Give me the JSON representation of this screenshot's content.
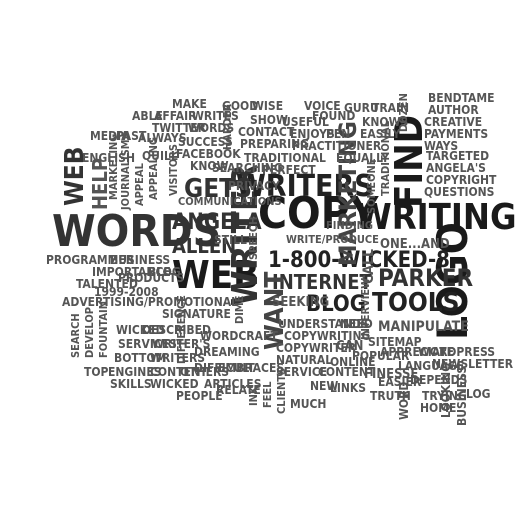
{
  "words": [
    {
      "text": "WORDS",
      "color": "#333333"
    },
    {
      "text": "COPY",
      "color": "#1a1a1a"
    },
    {
      "text": "WRITING",
      "color": "#1a1a1a"
    },
    {
      "text": "WEB",
      "color": "#1a1a1a"
    },
    {
      "text": "WRITER",
      "color": "#333333"
    },
    {
      "text": "LOGO",
      "color": "#1a1a1a"
    },
    {
      "text": "FIND",
      "color": "#1a1a1a"
    },
    {
      "text": "1-800-WICKED-8",
      "color": "#222222"
    },
    {
      "text": "WRITERS",
      "color": "#222222"
    },
    {
      "text": "ANGELA",
      "color": "#333333"
    },
    {
      "text": "ALLEN",
      "color": "#333333"
    },
    {
      "text": "INTERNET",
      "color": "#333333"
    },
    {
      "text": "PARKER",
      "color": "#333333"
    },
    {
      "text": "TOOLS",
      "color": "#222222"
    },
    {
      "text": "BLOG",
      "color": "#222222"
    },
    {
      "text": "MARKETING",
      "color": "#444444"
    },
    {
      "text": "GETS",
      "color": "#333333"
    },
    {
      "text": "WEB",
      "color": "#333333"
    },
    {
      "text": "HELP",
      "color": "#555555"
    },
    {
      "text": "WANT",
      "color": "#444444"
    },
    {
      "text": "CALL",
      "color": "#555555"
    },
    {
      "text": "PRIVACY",
      "color": "#555555"
    },
    {
      "text": "STILL",
      "color": "#555555"
    },
    {
      "text": "ONE...AND",
      "color": "#555555"
    },
    {
      "text": "BLOG",
      "color": "#555555"
    },
    {
      "text": "SEEKING",
      "color": "#555555"
    },
    {
      "text": "UNDERSTANDS",
      "color": "#555555"
    },
    {
      "text": "NEED",
      "color": "#555555"
    },
    {
      "text": "MANIPULATE",
      "color": "#555555"
    },
    {
      "text": "COPYWRITING",
      "color": "#555555"
    },
    {
      "text": "COPYWRITER",
      "color": "#555555"
    },
    {
      "text": "CAN",
      "color": "#555555"
    },
    {
      "text": "WORDCRAFT",
      "color": "#555555"
    },
    {
      "text": "DREAMING",
      "color": "#555555"
    },
    {
      "text": "DIFFICULT",
      "color": "#555555"
    },
    {
      "text": "ARTICLES",
      "color": "#555555"
    },
    {
      "text": "EMBRACES",
      "color": "#555555"
    },
    {
      "text": "SERVICE",
      "color": "#555555"
    },
    {
      "text": "NATURAL",
      "color": "#555555"
    },
    {
      "text": "CONTENT",
      "color": "#555555"
    },
    {
      "text": "FINESSE",
      "color": "#555555"
    },
    {
      "text": "NEW",
      "color": "#555555"
    },
    {
      "text": "LINKS",
      "color": "#555555"
    },
    {
      "text": "ONLINE",
      "color": "#555555"
    },
    {
      "text": "POPULAR",
      "color": "#555555"
    },
    {
      "text": "SITEMAP",
      "color": "#555555"
    },
    {
      "text": "APPRECIATE",
      "color": "#555555"
    },
    {
      "text": "WORDPRESS",
      "color": "#555555"
    },
    {
      "text": "LANGUAGE",
      "color": "#555555"
    },
    {
      "text": "NEWSLETTER",
      "color": "#555555"
    },
    {
      "text": "EASIER",
      "color": "#555555"
    },
    {
      "text": "DEPENDS",
      "color": "#555555"
    },
    {
      "text": "TRUTH",
      "color": "#555555"
    },
    {
      "text": "WORD",
      "color": "#555555"
    },
    {
      "text": "TRYING",
      "color": "#555555"
    },
    {
      "text": "HOME",
      "color": "#555555"
    },
    {
      "text": "LOOKING",
      "color": "#555555"
    },
    {
      "text": "BUSINESS",
      "color": "#555555"
    },
    {
      "text": "LOG",
      "color": "#555555"
    },
    {
      "text": "PROGRAMMER",
      "color": "#555555"
    },
    {
      "text": "BUSINESS",
      "color": "#555555"
    },
    {
      "text": "IMPORTANCE",
      "color": "#555555"
    },
    {
      "text": "BLOG",
      "color": "#555555"
    },
    {
      "text": "TALENTED",
      "color": "#555555"
    },
    {
      "text": "1999-2008",
      "color": "#555555"
    },
    {
      "text": "ADVERTISING/PROMOTIONAL",
      "color": "#555555"
    },
    {
      "text": "PRODUCTS",
      "color": "#555555"
    },
    {
      "text": "SIGNATURE",
      "color": "#555555"
    },
    {
      "text": "WICKED",
      "color": "#555555"
    },
    {
      "text": "DESCRIBED",
      "color": "#555555"
    },
    {
      "text": "SERVICES",
      "color": "#555555"
    },
    {
      "text": "WRITER'S",
      "color": "#555555"
    },
    {
      "text": "BOTTOM",
      "color": "#555555"
    },
    {
      "text": "WRITERS",
      "color": "#555555"
    },
    {
      "text": "TOP",
      "color": "#555555"
    },
    {
      "text": "ENGINES",
      "color": "#555555"
    },
    {
      "text": "SKILLS",
      "color": "#555555"
    },
    {
      "text": "WICKED",
      "color": "#555555"
    },
    {
      "text": "CONTENT",
      "color": "#555555"
    },
    {
      "text": "PEOPLE",
      "color": "#555555"
    },
    {
      "text": "RELATE",
      "color": "#555555"
    },
    {
      "text": "OTHERS",
      "color": "#555555"
    },
    {
      "text": "DIFFERENCE",
      "color": "#555555"
    },
    {
      "text": "SEARCH",
      "color": "#555555"
    },
    {
      "text": "DEVELOP",
      "color": "#555555"
    },
    {
      "text": "FOUNTAIN",
      "color": "#555555"
    },
    {
      "text": "DIME",
      "color": "#555555"
    },
    {
      "text": "SPEECH",
      "color": "#555555"
    },
    {
      "text": "INK",
      "color": "#555555"
    },
    {
      "text": "MUCH",
      "color": "#555555"
    },
    {
      "text": "FEEL",
      "color": "#555555"
    },
    {
      "text": "CLIENTS",
      "color": "#555555"
    },
    {
      "text": "INTERVIEW",
      "color": "#555555"
    },
    {
      "text": "WRITE/PRODUCE",
      "color": "#555555"
    },
    {
      "text": "FINDING",
      "color": "#555555"
    },
    {
      "text": "COMMUNICATIONS",
      "color": "#555555"
    },
    {
      "text": "MAKE",
      "color": "#555555"
    },
    {
      "text": "AFFAIR",
      "color": "#555555"
    },
    {
      "text": "WRITES",
      "color": "#555555"
    },
    {
      "text": "GOOD",
      "color": "#555555"
    },
    {
      "text": "WISE",
      "color": "#555555"
    },
    {
      "text": "VOICE",
      "color": "#555555"
    },
    {
      "text": "GURU",
      "color": "#555555"
    },
    {
      "text": "TRAIN",
      "color": "#555555"
    },
    {
      "text": "BENDTAME",
      "color": "#555555"
    },
    {
      "text": "AUTHOR",
      "color": "#555555"
    },
    {
      "text": "ABLE",
      "color": "#555555"
    },
    {
      "text": "TWITTER",
      "color": "#555555"
    },
    {
      "text": "WORDS",
      "color": "#555555"
    },
    {
      "text": "HARDER",
      "color": "#555555"
    },
    {
      "text": "SHOW",
      "color": "#555555"
    },
    {
      "text": "USEFUL",
      "color": "#555555"
    },
    {
      "text": "FOUND",
      "color": "#555555"
    },
    {
      "text": "KNOWS",
      "color": "#555555"
    },
    {
      "text": "CREATIVE",
      "color": "#555555"
    },
    {
      "text": "DOZEN",
      "color": "#555555"
    },
    {
      "text": "MEDIA",
      "color": "#555555"
    },
    {
      "text": "PAST",
      "color": "#555555"
    },
    {
      "text": "ALWAYS",
      "color": "#555555"
    },
    {
      "text": "SUCCESS",
      "color": "#555555"
    },
    {
      "text": "CONTACT",
      "color": "#555555"
    },
    {
      "text": "ENJOYS",
      "color": "#555555"
    },
    {
      "text": "PEN",
      "color": "#555555"
    },
    {
      "text": "EASILY",
      "color": "#555555"
    },
    {
      "text": "PAYMENTS",
      "color": "#555555"
    },
    {
      "text": "WAYS",
      "color": "#555555"
    },
    {
      "text": "ENGLISH",
      "color": "#555555"
    },
    {
      "text": "QUILL",
      "color": "#555555"
    },
    {
      "text": "FACEBOOK",
      "color": "#555555"
    },
    {
      "text": "PREPARING",
      "color": "#555555"
    },
    {
      "text": "PRACTITIONER",
      "color": "#555555"
    },
    {
      "text": "TRADITIONAL",
      "color": "#555555"
    },
    {
      "text": "TARGETED",
      "color": "#555555"
    },
    {
      "text": "ANGELA'S",
      "color": "#555555"
    },
    {
      "text": "COPYRIGHT",
      "color": "#555555"
    },
    {
      "text": "QUESTIONS",
      "color": "#555555"
    },
    {
      "text": "MARKETING",
      "color": "#555555"
    },
    {
      "text": "JOURNALISM",
      "color": "#555555"
    },
    {
      "text": "APPEAL",
      "color": "#555555"
    },
    {
      "text": "APPEALING",
      "color": "#555555"
    },
    {
      "text": "VISITORS",
      "color": "#555555"
    },
    {
      "text": "KNOW",
      "color": "#555555"
    },
    {
      "text": "SEARCHING",
      "color": "#555555"
    },
    {
      "text": "PERFECT",
      "color": "#555555"
    },
    {
      "text": "TRADITIONAL",
      "color": "#555555"
    },
    {
      "text": "EQUALLY",
      "color": "#555555"
    },
    {
      "text": "SOMEONE",
      "color": "#555555"
    }
  ]
}
